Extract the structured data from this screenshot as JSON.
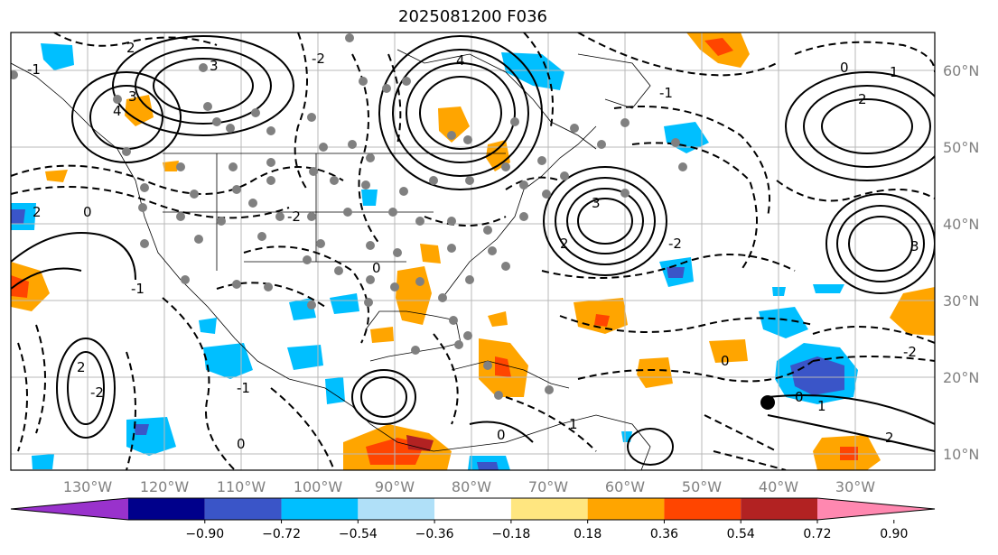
{
  "title": "2025081200 F036",
  "lon_labels": [
    "130°W",
    "120°W",
    "110°W",
    "100°W",
    "90°W",
    "80°W",
    "70°W",
    "60°W",
    "50°W",
    "40°W",
    "30°W"
  ],
  "lat_labels": [
    "60°N",
    "50°N",
    "40°N",
    "30°N",
    "20°N",
    "10°N"
  ],
  "colorbar": {
    "ticks": [
      "−0.90",
      "−0.72",
      "−0.54",
      "−0.36",
      "−0.18",
      "0.18",
      "0.36",
      "0.54",
      "0.72",
      "0.90"
    ],
    "colors": [
      "#9932cc",
      "#00008b",
      "#3a55c8",
      "#00bfff",
      "#b0e0f8",
      "#ffffff",
      "#ffe680",
      "#ffa500",
      "#ff4500",
      "#b22222",
      "#ff88b0"
    ]
  },
  "contour_labels": [
    "2",
    "-1",
    "3",
    "3",
    "4",
    "4",
    "-2",
    "2",
    "-2",
    "0",
    "-1",
    "0",
    "2",
    "3",
    "-1",
    "0",
    "1",
    "2",
    "-2",
    "0",
    "3",
    "2",
    "-2",
    "0",
    "1",
    "-1",
    "0",
    "2",
    "-2",
    "1",
    "0"
  ]
}
